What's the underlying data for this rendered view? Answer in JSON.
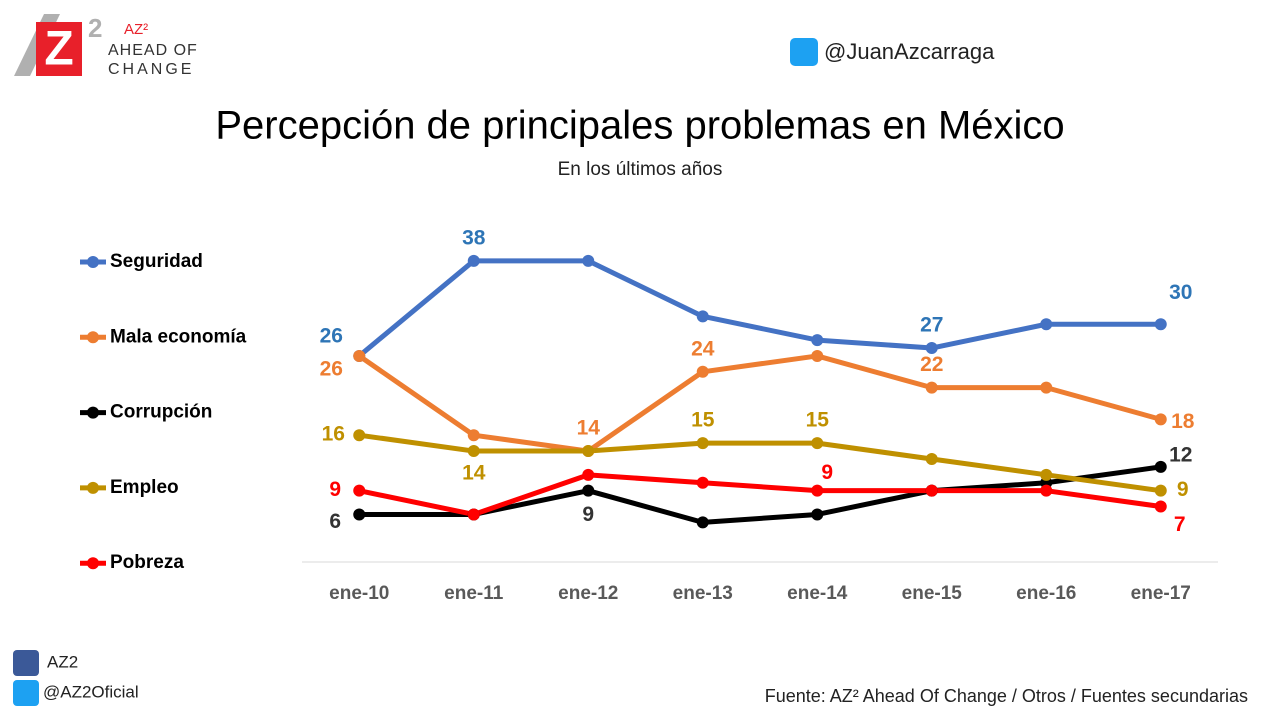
{
  "branding": {
    "logo_mark": "AZ²",
    "logo_line1": "AHEAD OF",
    "logo_line2": "CHANGE",
    "twitter_top": "@JuanAzcarraga",
    "facebook": "AZ2",
    "twitter_bottom": "@AZ2Oficial",
    "source": "Fuente: AZ² Ahead Of Change / Otros /  Fuentes secundarias"
  },
  "chart_data": {
    "type": "line",
    "title": "Percepción de principales problemas en México",
    "subtitle": "En los últimos años",
    "categories": [
      "ene-10",
      "ene-11",
      "ene-12",
      "ene-13",
      "ene-14",
      "ene-15",
      "ene-16",
      "ene-17"
    ],
    "ylim": [
      0,
      40
    ],
    "grid": false,
    "legend": "left",
    "series": [
      {
        "name": "Seguridad",
        "color": "#4472c4",
        "values": [
          26,
          38,
          38,
          31,
          28,
          27,
          30,
          30
        ],
        "value_labels": [
          "26",
          "38",
          null,
          null,
          null,
          "27",
          null,
          "30"
        ]
      },
      {
        "name": "Mala economía",
        "color": "#ed7d31",
        "values": [
          26,
          16,
          14,
          24,
          26,
          22,
          22,
          18
        ],
        "value_labels": [
          "26",
          null,
          "14",
          "24",
          null,
          "22",
          null,
          "18"
        ]
      },
      {
        "name": "Corrupción",
        "color": "#000000",
        "values": [
          6,
          6,
          9,
          5,
          6,
          9,
          10,
          12
        ],
        "value_labels": [
          "6",
          null,
          "9",
          null,
          null,
          null,
          null,
          "12"
        ]
      },
      {
        "name": "Empleo",
        "color": "#bf9000",
        "values": [
          16,
          14,
          14,
          15,
          15,
          13,
          11,
          9
        ],
        "value_labels": [
          "16",
          "14",
          null,
          "15",
          "15",
          null,
          null,
          "9"
        ]
      },
      {
        "name": "Pobreza",
        "color": "#ff0000",
        "values": [
          9,
          6,
          11,
          10,
          9,
          9,
          9,
          7
        ],
        "value_labels": [
          "9",
          null,
          null,
          null,
          "9",
          null,
          null,
          "7"
        ]
      }
    ]
  }
}
